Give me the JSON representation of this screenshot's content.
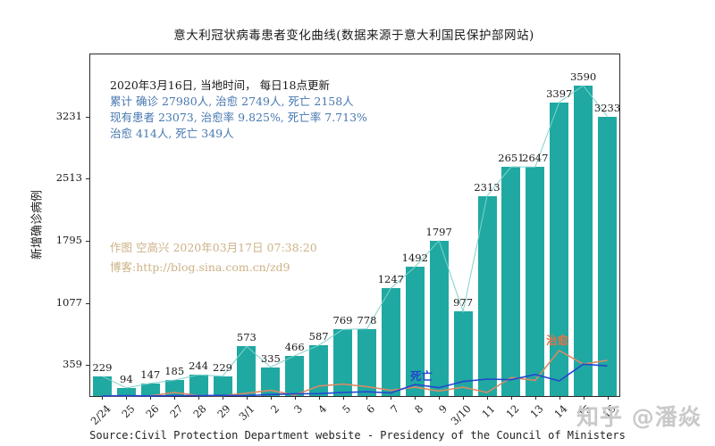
{
  "title": "意大利冠状病毒患者变化曲线(数据来源于意大利国民保护部网站)",
  "annotations": {
    "update_line": "2020年3月16日, 当地时间， 每日18点更新",
    "cumulative_line": "累计 确诊 27980人, 治愈 2749人, 死亡 2158人",
    "current_line": "现有患者 23073, 治愈率 9.825%, 死亡率 7.713%",
    "daily_line": "治愈 414人, 死亡 349人",
    "author_line": "作图 空高兴 2020年03月17日 07:38:20",
    "blog_line": "博客:http://blog.sina.com.cn/zd9",
    "deaths_series_label": "死亡",
    "recovered_series_label": "治愈"
  },
  "source_line": "Source:Civil Protection Department website - Presidency of the Council of Ministers",
  "watermark": "知乎 @潘焱",
  "colors": {
    "bar_teal": "#1fa9a2",
    "trend_teal": "#82d2cc",
    "deaths_blue": "#2546cf",
    "recovered_orange": "#d98a66",
    "annotation_black": "#1a1a1a",
    "annotation_blue": "#4878b0",
    "annotation_tan": "#cdb288",
    "recovered_label_color": "#e0734a",
    "watermark_gray": "#c9c9c9"
  },
  "chart_data": {
    "type": "bar",
    "title": "意大利冠状病毒患者变化曲线(数据来源于意大利国民保护部网站)",
    "xlabel": "",
    "ylabel": "新增确诊病例",
    "categories": [
      "2/24",
      "25",
      "26",
      "27",
      "28",
      "29",
      "3/1",
      "2",
      "3",
      "4",
      "5",
      "6",
      "7",
      "8",
      "9",
      "3/10",
      "11",
      "12",
      "13",
      "14",
      "15",
      "16"
    ],
    "series": [
      {
        "name": "新增确诊",
        "type": "bar",
        "color": "#1fa9a2",
        "trend_color": "#82d2cc",
        "values": [
          229,
          94,
          147,
          185,
          244,
          229,
          573,
          335,
          466,
          587,
          769,
          778,
          1247,
          1492,
          1797,
          977,
          2313,
          2651,
          2647,
          3397,
          3590,
          3233
        ]
      },
      {
        "name": "治愈",
        "type": "line",
        "color": "#d98a66",
        "values": [
          0,
          1,
          2,
          42,
          4,
          4,
          33,
          66,
          11,
          116,
          138,
          109,
          66,
          102,
          58,
          102,
          41,
          213,
          181,
          527,
          369,
          414
        ]
      },
      {
        "name": "死亡",
        "type": "line",
        "color": "#2546cf",
        "values": [
          1,
          4,
          1,
          5,
          4,
          8,
          5,
          18,
          27,
          28,
          41,
          49,
          36,
          133,
          97,
          168,
          196,
          189,
          250,
          175,
          368,
          349
        ]
      }
    ],
    "yticks": [
      359,
      1077,
      1795,
      2513,
      3231
    ],
    "ylim": [
      0,
      3950
    ],
    "grid": false,
    "legend_position": "none",
    "bar_value_labels": true
  }
}
